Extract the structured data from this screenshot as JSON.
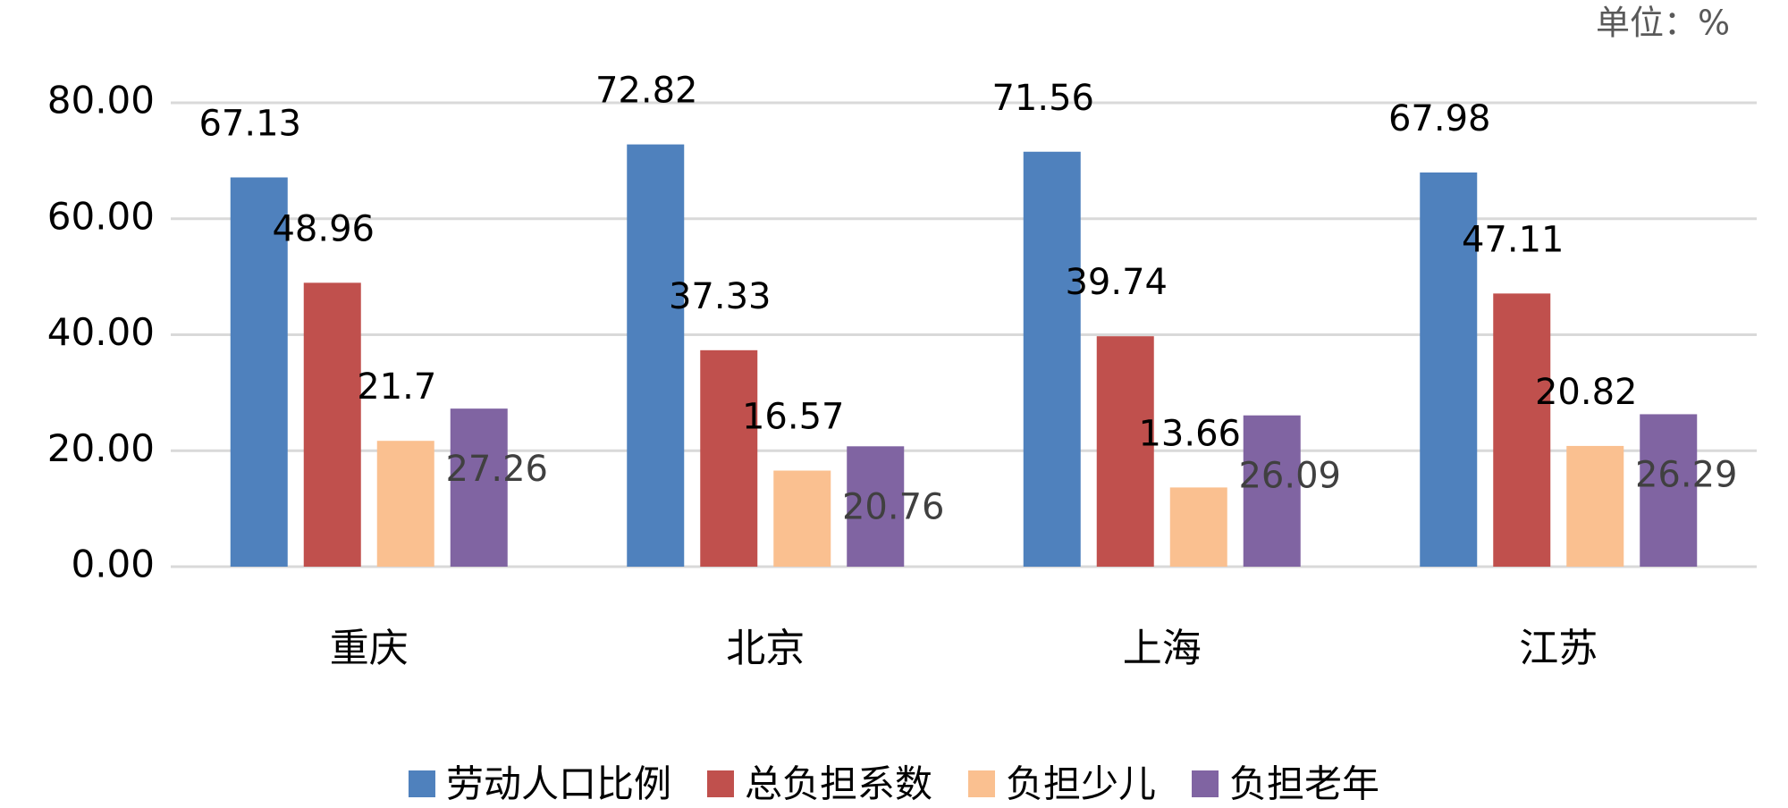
{
  "chart_data": {
    "type": "bar",
    "unit_note": "单位：%",
    "categories": [
      "重庆",
      "北京",
      "上海",
      "江苏"
    ],
    "series": [
      {
        "name": "劳动人口比例",
        "color": "#4f81bd",
        "values": [
          67.13,
          72.82,
          71.56,
          67.98
        ]
      },
      {
        "name": "总负担系数",
        "color": "#c0504d",
        "values": [
          48.96,
          37.33,
          39.74,
          47.11
        ]
      },
      {
        "name": "负担少儿",
        "color": "#fac090",
        "values": [
          21.7,
          16.57,
          13.66,
          20.82
        ]
      },
      {
        "name": "负担老年",
        "color": "#8064a2",
        "values": [
          27.26,
          20.76,
          26.09,
          26.29
        ]
      }
    ],
    "ylim": [
      0,
      80
    ],
    "yticks": [
      {
        "value": 0,
        "label": "0.00"
      },
      {
        "value": 20,
        "label": "20.00"
      },
      {
        "value": 40,
        "label": "40.00"
      },
      {
        "value": 60,
        "label": "60.00"
      },
      {
        "value": 80,
        "label": "80.00"
      }
    ],
    "grid": true,
    "legend": "bottom"
  }
}
